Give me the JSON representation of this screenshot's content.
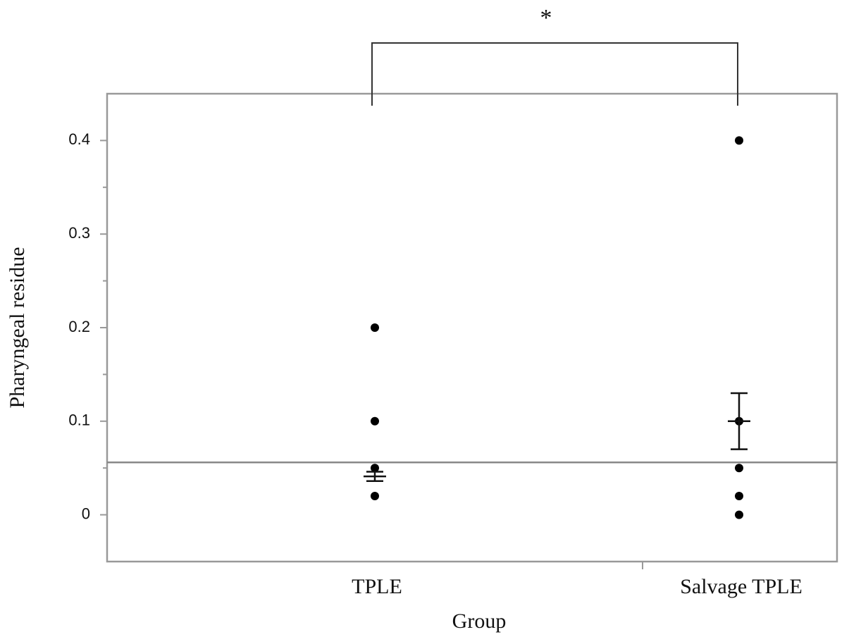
{
  "chart_data": {
    "type": "dotplot",
    "x_label": "Group",
    "y_label": "Pharyngeal residue",
    "categories": [
      "TPLE",
      "Salvage TPLE"
    ],
    "points": [
      [
        0.2,
        0.1,
        0.05,
        0.02
      ],
      [
        0.4,
        0.1,
        0.05,
        0.02,
        0
      ]
    ],
    "means": [
      0.041,
      0.1
    ],
    "errors": [
      0.005,
      0.03
    ],
    "reference_line": 0.056,
    "annotation": "*",
    "ylim": [
      -0.05,
      0.45
    ],
    "yticks": [
      0,
      0.1,
      0.2,
      0.3,
      0.4
    ],
    "yminorticks": [
      0.05,
      0.15,
      0.25,
      0.35
    ],
    "color": "#000000"
  }
}
